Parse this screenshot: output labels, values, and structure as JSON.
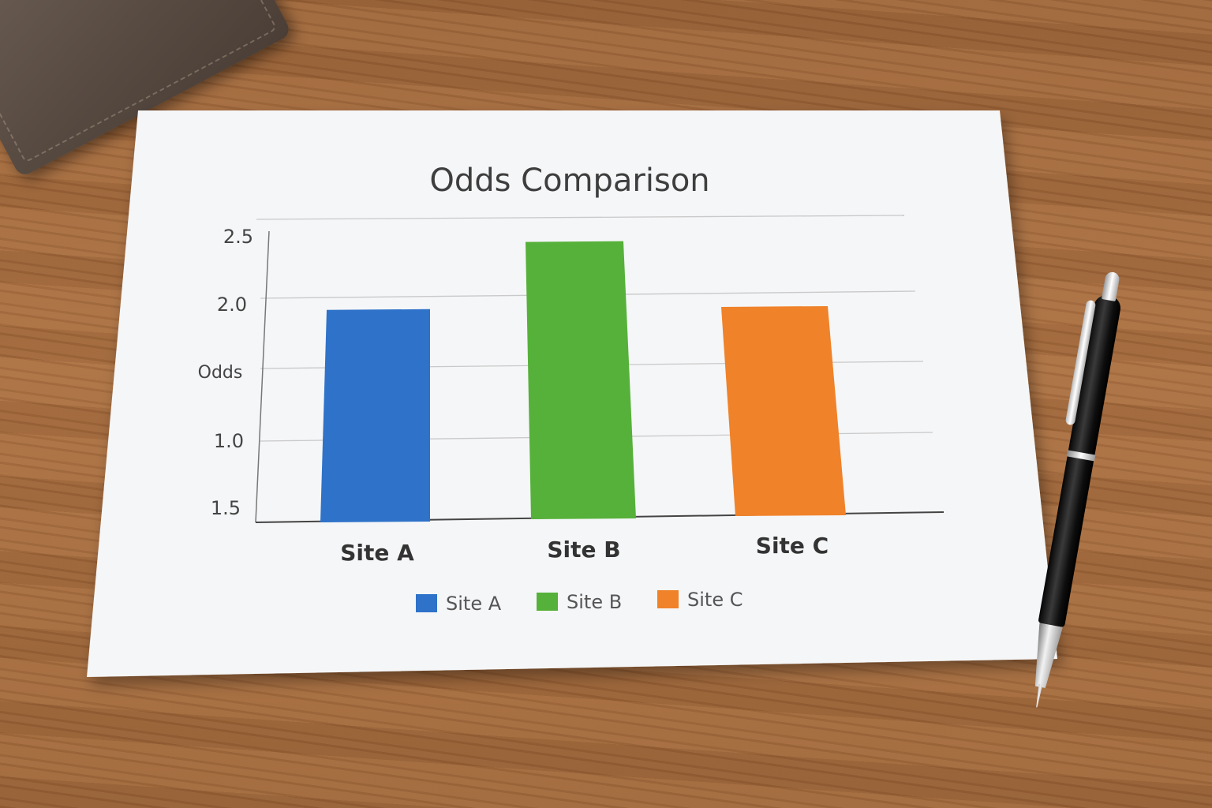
{
  "chart_data": {
    "type": "bar",
    "title": "Odds Comparison",
    "xlabel": "",
    "ylabel": "Odds",
    "categories": [
      "Site A",
      "Site B",
      "Site C"
    ],
    "values": [
      1.88,
      2.3,
      1.83
    ],
    "colors": [
      "#2e72c9",
      "#56b13a",
      "#f0822a"
    ],
    "y_tick_labels": [
      "1.5",
      "1.0",
      "Odds",
      "2.0",
      "2.5"
    ],
    "grid": true,
    "legend": {
      "placement": "bottom-center",
      "entries": [
        "Site A",
        "Site B",
        "Site C"
      ]
    }
  }
}
